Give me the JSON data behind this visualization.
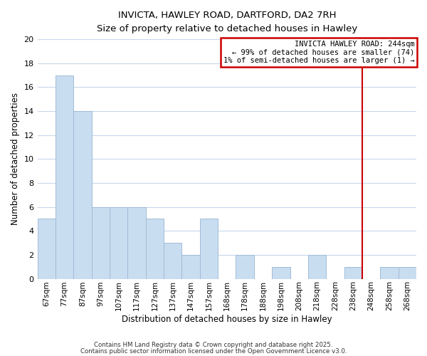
{
  "title": "INVICTA, HAWLEY ROAD, DARTFORD, DA2 7RH",
  "subtitle": "Size of property relative to detached houses in Hawley",
  "xlabel": "Distribution of detached houses by size in Hawley",
  "ylabel": "Number of detached properties",
  "bar_labels": [
    "67sqm",
    "77sqm",
    "87sqm",
    "97sqm",
    "107sqm",
    "117sqm",
    "127sqm",
    "137sqm",
    "147sqm",
    "157sqm",
    "168sqm",
    "178sqm",
    "188sqm",
    "198sqm",
    "208sqm",
    "218sqm",
    "228sqm",
    "238sqm",
    "248sqm",
    "258sqm",
    "268sqm"
  ],
  "bar_values": [
    5,
    17,
    14,
    6,
    6,
    6,
    5,
    3,
    2,
    5,
    0,
    2,
    0,
    1,
    0,
    2,
    0,
    1,
    0,
    1,
    1
  ],
  "bar_color": "#c9ddf0",
  "bar_edgecolor": "#a0bcd8",
  "ylim": [
    0,
    20
  ],
  "yticks": [
    0,
    2,
    4,
    6,
    8,
    10,
    12,
    14,
    16,
    18,
    20
  ],
  "vline_x": 17.5,
  "vline_color": "#cc0000",
  "annotation_title": "INVICTA HAWLEY ROAD: 244sqm",
  "annotation_line1": "← 99% of detached houses are smaller (74)",
  "annotation_line2": "1% of semi-detached houses are larger (1) →",
  "annotation_box_edgecolor": "#cc0000",
  "footer_line1": "Contains HM Land Registry data © Crown copyright and database right 2025.",
  "footer_line2": "Contains public sector information licensed under the Open Government Licence v3.0.",
  "background_color": "#ffffff",
  "grid_color": "#c8d8ec"
}
